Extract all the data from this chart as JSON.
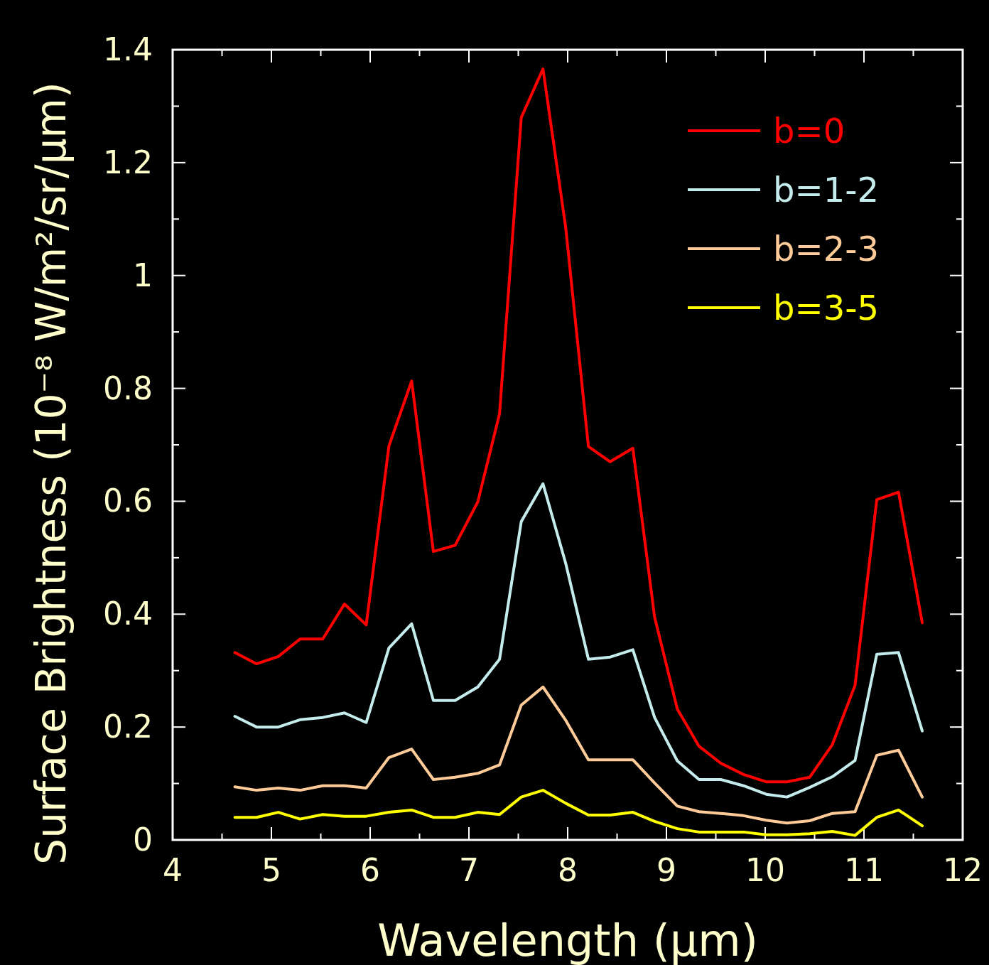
{
  "chart_data": {
    "type": "line",
    "xlabel": "Wavelength (μm)",
    "ylabel": "Surface Brightness (10⁻⁸ W/m²/sr/μm)",
    "legend": "top right",
    "x": [
      4.63,
      4.85,
      5.07,
      5.29,
      5.52,
      5.74,
      5.96,
      6.19,
      6.42,
      6.64,
      6.86,
      7.09,
      7.31,
      7.53,
      7.75,
      7.98,
      8.21,
      8.43,
      8.66,
      8.88,
      9.11,
      9.33,
      9.55,
      9.78,
      10.01,
      10.22,
      10.45,
      10.68,
      10.91,
      11.13,
      11.35,
      11.59
    ],
    "xlim": [
      4,
      12
    ],
    "ylim": [
      0,
      1.4
    ],
    "xticks": [
      4,
      {
        "value": 4.5,
        "label": null
      },
      5,
      {
        "value": 5.5,
        "label": null
      },
      6,
      {
        "value": 6.5,
        "label": null
      },
      7,
      {
        "value": 7.5,
        "label": null
      },
      8,
      {
        "value": 8.5,
        "label": null
      },
      9,
      {
        "value": 9.5,
        "label": null
      },
      10,
      {
        "value": 10.5,
        "label": null
      },
      11,
      {
        "value": 11.5,
        "label": null
      },
      12
    ],
    "yticks": [
      0,
      {
        "value": 0.1,
        "label": null
      },
      0.2,
      {
        "value": 0.3,
        "label": null
      },
      0.4,
      {
        "value": 0.5,
        "label": null
      },
      0.6,
      {
        "value": 0.7,
        "label": null
      },
      0.8,
      {
        "value": 0.9,
        "label": null
      },
      1,
      {
        "value": 1.1,
        "label": null
      },
      1.2,
      {
        "value": 1.3,
        "label": null
      },
      1.4
    ],
    "series": [
      {
        "name": "b=0",
        "color": "#ff0000",
        "values": [
          0.332,
          0.312,
          0.325,
          0.356,
          0.356,
          0.418,
          0.381,
          0.698,
          0.813,
          0.511,
          0.522,
          0.599,
          0.755,
          1.28,
          1.366,
          1.085,
          0.697,
          0.67,
          0.694,
          0.395,
          0.232,
          0.166,
          0.136,
          0.116,
          0.103,
          0.103,
          0.111,
          0.169,
          0.274,
          0.603,
          0.616,
          0.385
        ]
      },
      {
        "name": "b=1-2",
        "color": "#c4ecec",
        "values": [
          0.219,
          0.2,
          0.2,
          0.213,
          0.217,
          0.225,
          0.208,
          0.34,
          0.383,
          0.247,
          0.247,
          0.271,
          0.32,
          0.564,
          0.631,
          0.49,
          0.32,
          0.324,
          0.337,
          0.217,
          0.14,
          0.107,
          0.107,
          0.096,
          0.081,
          0.076,
          0.093,
          0.112,
          0.141,
          0.329,
          0.332,
          0.193
        ]
      },
      {
        "name": "b=2-3",
        "color": "#ffcc99",
        "values": [
          0.094,
          0.088,
          0.092,
          0.088,
          0.096,
          0.096,
          0.092,
          0.146,
          0.161,
          0.107,
          0.111,
          0.118,
          0.133,
          0.239,
          0.271,
          0.212,
          0.142,
          0.142,
          0.142,
          0.101,
          0.06,
          0.05,
          0.047,
          0.043,
          0.035,
          0.03,
          0.034,
          0.047,
          0.05,
          0.15,
          0.159,
          0.076
        ]
      },
      {
        "name": "b=3-5",
        "color": "#ffff00",
        "values": [
          0.04,
          0.04,
          0.049,
          0.037,
          0.045,
          0.042,
          0.042,
          0.049,
          0.053,
          0.04,
          0.04,
          0.049,
          0.045,
          0.076,
          0.088,
          0.065,
          0.044,
          0.044,
          0.049,
          0.033,
          0.02,
          0.014,
          0.014,
          0.014,
          0.009,
          0.009,
          0.011,
          0.015,
          0.008,
          0.04,
          0.053,
          0.025
        ]
      }
    ]
  }
}
